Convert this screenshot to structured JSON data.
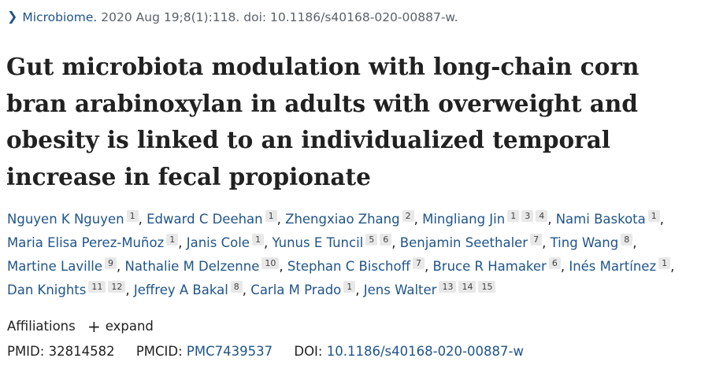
{
  "citation": {
    "journal": "Microbiome.",
    "details": "2020 Aug 19;8(1):118. doi: 10.1186/s40168-020-00887-w."
  },
  "title": "Gut microbiota modulation with long-chain corn bran arabinoxylan in adults with overweight and obesity is linked to an individualized temporal increase in fecal propionate",
  "authors": [
    {
      "name": "Nguyen K Nguyen",
      "affs": [
        "1"
      ]
    },
    {
      "name": "Edward C Deehan",
      "affs": [
        "1"
      ]
    },
    {
      "name": "Zhengxiao Zhang",
      "affs": [
        "2"
      ]
    },
    {
      "name": "Mingliang Jin",
      "affs": [
        "1",
        "3",
        "4"
      ]
    },
    {
      "name": "Nami Baskota",
      "affs": [
        "1"
      ]
    },
    {
      "name": "Maria Elisa Perez-Muñoz",
      "affs": [
        "1"
      ]
    },
    {
      "name": "Janis Cole",
      "affs": [
        "1"
      ]
    },
    {
      "name": "Yunus E Tuncil",
      "affs": [
        "5",
        "6"
      ]
    },
    {
      "name": "Benjamin Seethaler",
      "affs": [
        "7"
      ]
    },
    {
      "name": "Ting Wang",
      "affs": [
        "8"
      ]
    },
    {
      "name": "Martine Laville",
      "affs": [
        "9"
      ]
    },
    {
      "name": "Nathalie M Delzenne",
      "affs": [
        "10"
      ]
    },
    {
      "name": "Stephan C Bischoff",
      "affs": [
        "7"
      ]
    },
    {
      "name": "Bruce R Hamaker",
      "affs": [
        "6"
      ]
    },
    {
      "name": "Inés Martínez",
      "affs": [
        "1"
      ]
    },
    {
      "name": "Dan Knights",
      "affs": [
        "11",
        "12"
      ]
    },
    {
      "name": "Jeffrey A Bakal",
      "affs": [
        "8"
      ]
    },
    {
      "name": "Carla M Prado",
      "affs": [
        "1"
      ]
    },
    {
      "name": "Jens Walter",
      "affs": [
        "13",
        "14",
        "15"
      ]
    }
  ],
  "affiliations": {
    "label": "Affiliations",
    "expand_label": "expand",
    "expand_icon": "plus-icon"
  },
  "identifiers": {
    "pmid_label": "PMID:",
    "pmid": "32814582",
    "pmcid_label": "PMCID:",
    "pmcid": "PMC7439537",
    "doi_label": "DOI:",
    "doi": "10.1186/s40168-020-00887-w"
  },
  "colors": {
    "link": "#20558a",
    "text": "#212121",
    "muted": "#5b616b",
    "badge_bg": "#e8e8e8"
  }
}
